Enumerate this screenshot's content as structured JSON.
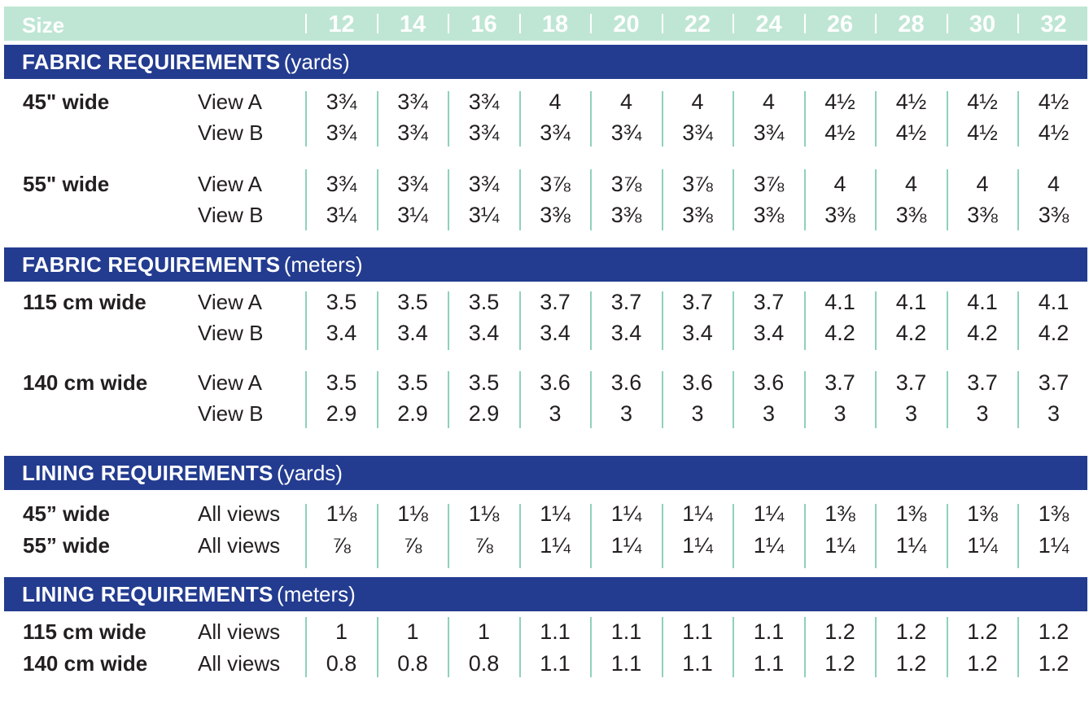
{
  "header": {
    "label": "Size",
    "sizes": [
      "12",
      "14",
      "16",
      "18",
      "20",
      "22",
      "24",
      "26",
      "28",
      "30",
      "32"
    ]
  },
  "sections": [
    {
      "title": "FABRIC REQUIREMENTS",
      "unit": "(yards)",
      "groups": [
        {
          "label": "45\" wide",
          "rows": [
            {
              "view": "View A",
              "values": [
                "3¾",
                "3¾",
                "3¾",
                "4",
                "4",
                "4",
                "4",
                "4½",
                "4½",
                "4½",
                "4½"
              ]
            },
            {
              "view": "View B",
              "values": [
                "3¾",
                "3¾",
                "3¾",
                "3¾",
                "3¾",
                "3¾",
                "3¾",
                "4½",
                "4½",
                "4½",
                "4½"
              ]
            }
          ]
        },
        {
          "label": "55\" wide",
          "rows": [
            {
              "view": "View A",
              "values": [
                "3¾",
                "3¾",
                "3¾",
                "3⅞",
                "3⅞",
                "3⅞",
                "3⅞",
                "4",
                "4",
                "4",
                "4"
              ]
            },
            {
              "view": "View B",
              "values": [
                "3¼",
                "3¼",
                "3¼",
                "3⅜",
                "3⅜",
                "3⅜",
                "3⅜",
                "3⅜",
                "3⅜",
                "3⅜",
                "3⅜"
              ]
            }
          ]
        }
      ]
    },
    {
      "title": "FABRIC REQUIREMENTS",
      "unit": "(meters)",
      "groups": [
        {
          "label": "115 cm wide",
          "rows": [
            {
              "view": "View A",
              "values": [
                "3.5",
                "3.5",
                "3.5",
                "3.7",
                "3.7",
                "3.7",
                "3.7",
                "4.1",
                "4.1",
                "4.1",
                "4.1"
              ]
            },
            {
              "view": "View B",
              "values": [
                "3.4",
                "3.4",
                "3.4",
                "3.4",
                "3.4",
                "3.4",
                "3.4",
                "4.2",
                "4.2",
                "4.2",
                "4.2"
              ]
            }
          ]
        },
        {
          "label": "140 cm wide",
          "rows": [
            {
              "view": "View A",
              "values": [
                "3.5",
                "3.5",
                "3.5",
                "3.6",
                "3.6",
                "3.6",
                "3.6",
                "3.7",
                "3.7",
                "3.7",
                "3.7"
              ]
            },
            {
              "view": "View B",
              "values": [
                "2.9",
                "2.9",
                "2.9",
                "3",
                "3",
                "3",
                "3",
                "3",
                "3",
                "3",
                "3"
              ]
            }
          ]
        }
      ]
    },
    {
      "title": "LINING REQUIREMENTS",
      "unit": "(yards)",
      "groups": [
        {
          "label": "",
          "rows": [
            {
              "label": "45” wide",
              "view": "All views",
              "values": [
                "1⅛",
                "1⅛",
                "1⅛",
                "1¼",
                "1¼",
                "1¼",
                "1¼",
                "1⅜",
                "1⅜",
                "1⅜",
                "1⅜"
              ]
            },
            {
              "label": "55” wide",
              "view": "All views",
              "values": [
                "⅞",
                "⅞",
                "⅞",
                "1¼",
                "1¼",
                "1¼",
                "1¼",
                "1¼",
                "1¼",
                "1¼",
                "1¼"
              ]
            }
          ]
        }
      ]
    },
    {
      "title": "LINING REQUIREMENTS",
      "unit": "(meters)",
      "groups": [
        {
          "label": "",
          "rows": [
            {
              "label": "115 cm wide",
              "view": "All views",
              "values": [
                "1",
                "1",
                "1",
                "1.1",
                "1.1",
                "1.1",
                "1.1",
                "1.2",
                "1.2",
                "1.2",
                "1.2"
              ]
            },
            {
              "label": "140 cm wide",
              "view": "All views",
              "values": [
                "0.8",
                "0.8",
                "0.8",
                "1.1",
                "1.1",
                "1.1",
                "1.1",
                "1.2",
                "1.2",
                "1.2",
                "1.2"
              ]
            }
          ]
        }
      ]
    }
  ]
}
